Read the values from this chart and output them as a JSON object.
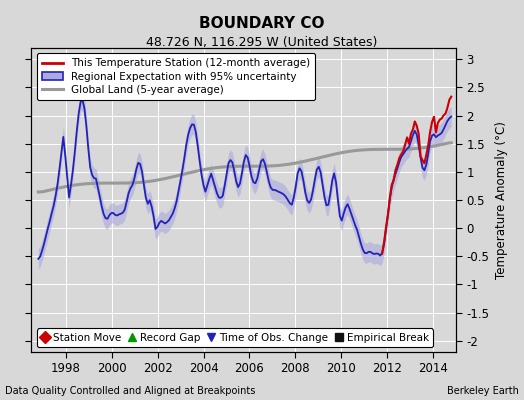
{
  "title": "BOUNDARY CO",
  "subtitle": "48.726 N, 116.295 W (United States)",
  "ylabel": "Temperature Anomaly (°C)",
  "footer_left": "Data Quality Controlled and Aligned at Breakpoints",
  "footer_right": "Berkeley Earth",
  "xlim": [
    1996.5,
    2015.0
  ],
  "ylim": [
    -2.2,
    3.2
  ],
  "yticks": [
    -2,
    -1.5,
    -1,
    -0.5,
    0,
    0.5,
    1,
    1.5,
    2,
    2.5,
    3
  ],
  "xticks": [
    1998,
    2000,
    2002,
    2004,
    2006,
    2008,
    2010,
    2012,
    2014
  ],
  "bg_color": "#d8d8d8",
  "plot_bg_color": "#d8d8d8",
  "regional_color": "#2222bb",
  "regional_fill_color": "#aaaadd",
  "station_color": "#cc0000",
  "global_color": "#999999",
  "grid_color": "#bbbbbb",
  "legend_labels": [
    "This Temperature Station (12-month average)",
    "Regional Expectation with 95% uncertainty",
    "Global Land (5-year average)"
  ],
  "bottom_legend": [
    "Station Move",
    "Record Gap",
    "Time of Obs. Change",
    "Empirical Break"
  ],
  "bottom_legend_colors": [
    "#cc0000",
    "#009900",
    "#2222bb",
    "#111111"
  ],
  "bottom_legend_markers": [
    "D",
    "^",
    "v",
    "s"
  ]
}
